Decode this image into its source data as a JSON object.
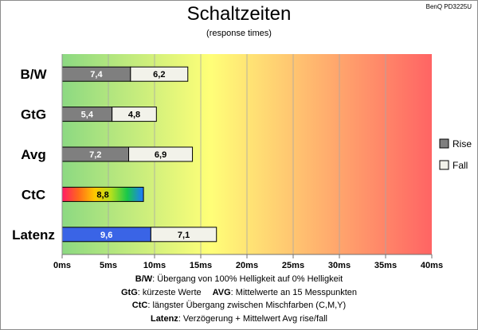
{
  "monitor": "BenQ PD3225U",
  "chart_data": {
    "type": "bar",
    "orientation": "horizontal",
    "stacked": true,
    "title": "Schaltzeiten",
    "subtitle": "(response times)",
    "categories": [
      "B/W",
      "GtG",
      "Avg",
      "CtC",
      "Latenz"
    ],
    "series": [
      {
        "name": "Rise",
        "values": [
          7.4,
          5.4,
          7.2,
          8.8,
          9.6
        ]
      },
      {
        "name": "Fall",
        "values": [
          6.2,
          4.8,
          6.9,
          null,
          7.1
        ]
      }
    ],
    "value_labels": {
      "Rise": [
        "7,4",
        "5,4",
        "7,2",
        "8,8",
        "9,6"
      ],
      "Fall": [
        "6,2",
        "4,8",
        "6,9",
        "",
        "7,1"
      ]
    },
    "xlim": [
      0,
      40
    ],
    "x_ticks": [
      0,
      5,
      10,
      15,
      20,
      25,
      30,
      35,
      40
    ],
    "x_tick_labels": [
      "0ms",
      "5ms",
      "10ms",
      "15ms",
      "20ms",
      "25ms",
      "30ms",
      "35ms",
      "40ms"
    ],
    "grid": true,
    "legend_position": "right",
    "colors": {
      "rise": "#7f7f7f",
      "fall": "#f2f2ea",
      "latenz_rise": "#3a64e6",
      "ctc_gradient": [
        "#ff1a66",
        "#ff6a1a",
        "#ffc800",
        "#b4e01e",
        "#18c84a",
        "#1e78ff"
      ],
      "background_gradient": [
        "#8cd982",
        "#ffff78",
        "#ff6464"
      ]
    }
  },
  "notes": [
    {
      "label": "B/W",
      "text": ":  Übergang von 100% Helligkeit auf 0% Helligkeit"
    },
    {
      "label": "GtG",
      "text": ": kürzeste  Werte",
      "label2": "AVG",
      "text2": ": Mittelwerte  an 15 Messpunkten"
    },
    {
      "label": "CtC",
      "text": ": längster Übergang  zwischen Mischfarben (C,M,Y)"
    },
    {
      "label": "Latenz",
      "text": ": Verzögerung  + Mittelwert Avg rise/fall"
    }
  ]
}
